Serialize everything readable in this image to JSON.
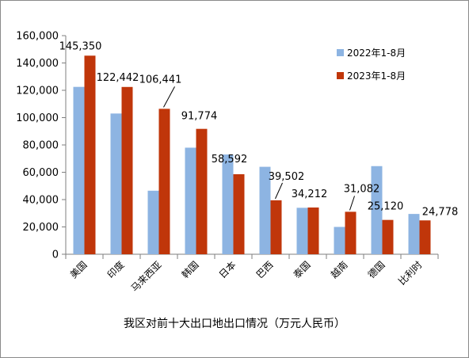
{
  "chart_data": {
    "type": "bar",
    "title": "我区对前十大出口地出口情况（万元人民币）",
    "categories": [
      "美国",
      "印度",
      "马来西亚",
      "韩国",
      "日本",
      "巴西",
      "泰国",
      "越南",
      "德国",
      "比利时"
    ],
    "series": [
      {
        "name": "2022年1-8月",
        "color": "#8DB4E2",
        "values": [
          122500,
          103000,
          46500,
          78000,
          73000,
          64000,
          34000,
          20000,
          64500,
          29500
        ]
      },
      {
        "name": "2023年1-8月",
        "color": "#C0360A",
        "values": [
          145350,
          122442,
          106441,
          91774,
          58592,
          39502,
          34212,
          31082,
          25120,
          24778
        ]
      }
    ],
    "data_labels": [
      "145,350",
      "122,442",
      "106,441",
      "91,774",
      "58,592",
      "39,502",
      "34,212",
      "31,082",
      "25,120",
      "24,778"
    ],
    "yticks": [
      "0",
      "20,000",
      "40,000",
      "60,000",
      "80,000",
      "100,000",
      "120,000",
      "140,000",
      "160,000"
    ],
    "ylim": [
      0,
      160000
    ],
    "grid": false,
    "legend": "top-right"
  }
}
